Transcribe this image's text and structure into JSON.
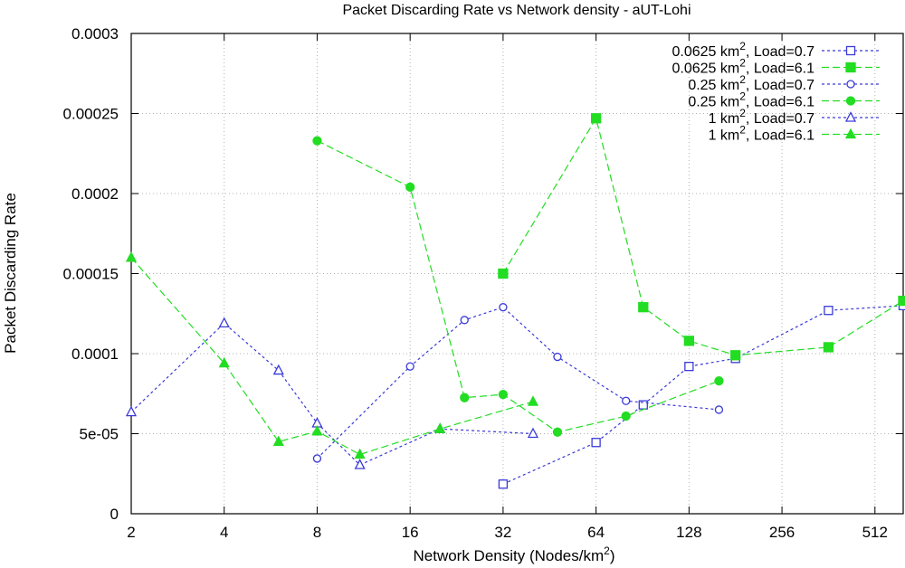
{
  "chart_data": {
    "type": "line",
    "title": "Packet Discarding Rate vs Network density - aUT-Lohi",
    "xlabel": "Network Density (Nodes/km",
    "xlabel_sup": "2",
    "xlabel_end": ")",
    "ylabel": "Packet Discarding Rate",
    "x_scale": "log2",
    "xlim": [
      2,
      632
    ],
    "ylim": [
      0,
      0.0003
    ],
    "x_ticks": [
      {
        "value": 2,
        "label": "2"
      },
      {
        "value": 4,
        "label": "4"
      },
      {
        "value": 8,
        "label": "8"
      },
      {
        "value": 16,
        "label": "16"
      },
      {
        "value": 32,
        "label": "32"
      },
      {
        "value": 64,
        "label": "64"
      },
      {
        "value": 128,
        "label": "128"
      },
      {
        "value": 256,
        "label": "256"
      },
      {
        "value": 512,
        "label": "512"
      }
    ],
    "y_ticks": [
      {
        "value": 0,
        "label": "0"
      },
      {
        "value": 5e-05,
        "label": "5e-05"
      },
      {
        "value": 0.0001,
        "label": "0.0001"
      },
      {
        "value": 0.00015,
        "label": "0.00015"
      },
      {
        "value": 0.0002,
        "label": "0.0002"
      },
      {
        "value": 0.00025,
        "label": "0.00025"
      },
      {
        "value": 0.0003,
        "label": "0.0003"
      }
    ],
    "grid": true,
    "legend_position": "top-right",
    "series": [
      {
        "name": "0.0625 km2, Load=0.7",
        "legend_prefix": "0.0625 km",
        "legend_sup": "2",
        "legend_suffix": ", Load=0.7",
        "color": "#3a3ad8",
        "dash": "short",
        "marker": "square",
        "filled": false,
        "x": [
          32,
          64,
          91,
          128,
          181,
          362,
          632
        ],
        "y": [
          1.85e-05,
          4.45e-05,
          6.8e-05,
          9.2e-05,
          9.7e-05,
          0.000127,
          0.00013
        ]
      },
      {
        "name": "0.0625 km2, Load=6.1",
        "legend_prefix": "0.0625 km",
        "legend_sup": "2",
        "legend_suffix": ", Load=6.1",
        "color": "#22dd22",
        "dash": "long",
        "marker": "square",
        "filled": true,
        "x": [
          32,
          64,
          91,
          128,
          181,
          362,
          632
        ],
        "y": [
          0.00015,
          0.000247,
          0.000129,
          0.000108,
          9.9e-05,
          0.000104,
          0.000133
        ]
      },
      {
        "name": "0.25 km2, Load=0.7",
        "legend_prefix": "0.25 km",
        "legend_sup": "2",
        "legend_suffix": ", Load=0.7",
        "color": "#3a3ad8",
        "dash": "short",
        "marker": "circle",
        "filled": false,
        "x": [
          8,
          16,
          24,
          32,
          48,
          80,
          160
        ],
        "y": [
          3.45e-05,
          9.2e-05,
          0.000121,
          0.000129,
          9.8e-05,
          7.05e-05,
          6.5e-05
        ]
      },
      {
        "name": "0.25 km2, Load=6.1",
        "legend_prefix": "0.25 km",
        "legend_sup": "2",
        "legend_suffix": ", Load=6.1",
        "color": "#22dd22",
        "dash": "long",
        "marker": "circle",
        "filled": true,
        "x": [
          8,
          16,
          24,
          32,
          48,
          80,
          160
        ],
        "y": [
          0.000233,
          0.000204,
          7.25e-05,
          7.45e-05,
          5.1e-05,
          6.1e-05,
          8.3e-05
        ]
      },
      {
        "name": "1 km2, Load=0.7",
        "legend_prefix": "1 km",
        "legend_sup": "2",
        "legend_suffix": ", Load=0.7",
        "color": "#3a3ad8",
        "dash": "short",
        "marker": "triangle",
        "filled": false,
        "x": [
          2,
          4,
          6,
          8,
          11,
          20,
          40
        ],
        "y": [
          6.35e-05,
          0.000119,
          8.95e-05,
          5.65e-05,
          3.05e-05,
          5.3e-05,
          5e-05
        ]
      },
      {
        "name": "1 km2, Load=6.1",
        "legend_prefix": "1 km",
        "legend_sup": "2",
        "legend_suffix": ", Load=6.1",
        "color": "#22dd22",
        "dash": "long",
        "marker": "triangle",
        "filled": true,
        "x": [
          2,
          4,
          6,
          8,
          11,
          20,
          40
        ],
        "y": [
          0.00016,
          9.4e-05,
          4.5e-05,
          5.15e-05,
          3.7e-05,
          5.3e-05,
          7e-05
        ]
      }
    ]
  }
}
